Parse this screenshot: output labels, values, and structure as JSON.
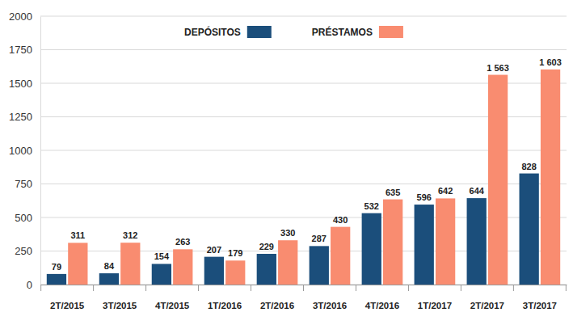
{
  "chart_data": {
    "type": "bar",
    "categories": [
      "2T/2015",
      "3T/2015",
      "4T/2015",
      "1T/2016",
      "2T/2016",
      "3T/2016",
      "4T/2016",
      "1T/2017",
      "2T/2017",
      "3T/2017"
    ],
    "series": [
      {
        "name": "DEPÓSITOS",
        "color": "#1b4e7b",
        "values": [
          79,
          84,
          154,
          207,
          229,
          287,
          532,
          596,
          644,
          828
        ]
      },
      {
        "name": "PRÉSTAMOS",
        "color": "#f98c70",
        "values": [
          311,
          312,
          263,
          179,
          330,
          430,
          635,
          642,
          1563,
          1603
        ],
        "value_labels": [
          "311",
          "312",
          "263",
          "179",
          "330",
          "430",
          "635",
          "642",
          "1 563",
          "1 603"
        ]
      }
    ],
    "ylim": [
      0,
      2000
    ],
    "yticks": [
      0,
      250,
      500,
      750,
      1000,
      1250,
      1500,
      1750,
      2000
    ],
    "grid": true,
    "legend": "top",
    "data_labels": true
  }
}
